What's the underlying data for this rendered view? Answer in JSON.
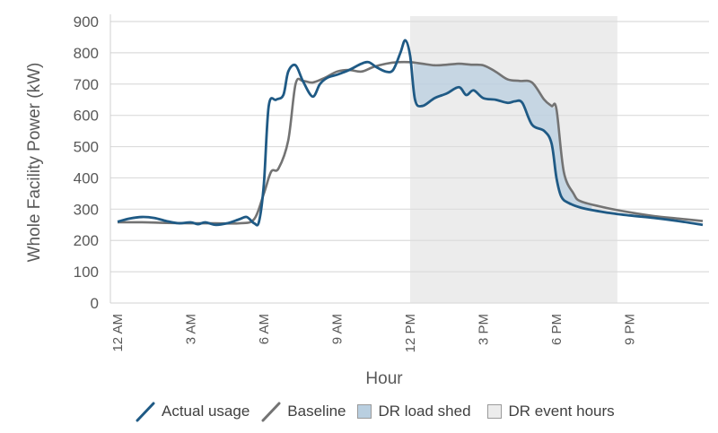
{
  "chart_data": {
    "type": "line",
    "title": "",
    "xlabel": "Hour",
    "ylabel": "Whole Facility Power (kW)",
    "ylim": [
      0,
      900
    ],
    "yticks": [
      0,
      100,
      200,
      300,
      400,
      500,
      600,
      700,
      800,
      900
    ],
    "xtick_labels": [
      "12 AM",
      "3 AM",
      "6 AM",
      "9 AM",
      "12 PM",
      "3 PM",
      "6 PM",
      "9 PM"
    ],
    "xtick_hours": [
      0,
      3,
      6,
      9,
      12,
      15,
      18,
      21
    ],
    "xlim": [
      0,
      24
    ],
    "grid": true,
    "legend_position": "bottom",
    "dr_event_hours": [
      12,
      20.5
    ],
    "series": [
      {
        "name": "Actual usage",
        "color": "#1f5a85",
        "x": [
          0,
          0.5,
          1,
          1.5,
          2,
          2.5,
          3,
          3.3,
          3.6,
          4,
          4.5,
          5,
          5.3,
          5.6,
          5.8,
          6,
          6.2,
          6.5,
          6.8,
          7,
          7.3,
          7.6,
          8,
          8.3,
          8.6,
          9,
          9.5,
          10,
          10.3,
          10.6,
          11,
          11.3,
          11.6,
          11.8,
          12,
          12.2,
          12.5,
          13,
          13.5,
          14,
          14.3,
          14.6,
          15,
          15.5,
          16,
          16.3,
          16.6,
          17,
          17.5,
          17.8,
          18,
          18.2,
          18.5,
          19,
          20,
          21,
          22,
          23,
          24
        ],
        "y": [
          260,
          270,
          275,
          272,
          262,
          255,
          258,
          252,
          258,
          250,
          255,
          268,
          275,
          255,
          260,
          380,
          630,
          650,
          665,
          740,
          760,
          710,
          660,
          700,
          720,
          730,
          745,
          765,
          770,
          755,
          740,
          745,
          800,
          840,
          790,
          650,
          630,
          655,
          670,
          690,
          665,
          680,
          655,
          650,
          640,
          645,
          640,
          570,
          550,
          510,
          400,
          340,
          320,
          305,
          290,
          280,
          272,
          262,
          250
        ]
      },
      {
        "name": "Baseline",
        "color": "#737373",
        "x": [
          0,
          1,
          2,
          3,
          4,
          5,
          5.6,
          6,
          6.3,
          6.6,
          7,
          7.3,
          7.6,
          8,
          8.5,
          9,
          9.5,
          10,
          10.5,
          11,
          11.5,
          12,
          12.5,
          13,
          13.5,
          14,
          14.5,
          15,
          15.5,
          16,
          16.5,
          17,
          17.5,
          17.8,
          18,
          18.3,
          18.7,
          19,
          20,
          21,
          22,
          23,
          24
        ],
        "y": [
          258,
          258,
          256,
          255,
          255,
          255,
          268,
          350,
          420,
          430,
          520,
          700,
          710,
          705,
          720,
          740,
          745,
          740,
          755,
          765,
          770,
          770,
          765,
          760,
          762,
          765,
          762,
          760,
          740,
          715,
          710,
          705,
          650,
          630,
          620,
          420,
          350,
          325,
          305,
          290,
          278,
          270,
          262
        ]
      }
    ],
    "shaded": [
      {
        "name": "DR load shed",
        "color": "#b9cfe0",
        "between": [
          "Baseline",
          "Actual usage"
        ],
        "range": [
          12,
          20.5
        ]
      },
      {
        "name": "DR event hours",
        "color": "#ececec",
        "range": [
          12,
          20.5
        ]
      }
    ]
  },
  "legend": {
    "items": [
      {
        "label": "Actual usage",
        "color": "#1f5a85",
        "kind": "line"
      },
      {
        "label": "Baseline",
        "color": "#737373",
        "kind": "line"
      },
      {
        "label": "DR load shed",
        "color": "#b9cfe0",
        "kind": "box"
      },
      {
        "label": "DR event hours",
        "color": "#ececec",
        "kind": "box"
      }
    ]
  }
}
